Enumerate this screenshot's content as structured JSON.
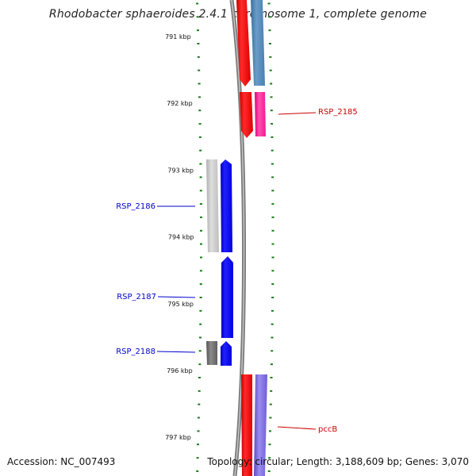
{
  "header": {
    "title": "Rhodobacter sphaeroides 2.4.1 chromosome 1, complete genome"
  },
  "footer": {
    "accession": "Accession: NC_007493",
    "topology": "Topology: circular; Length: 3,188,609 bp; Genes: 3,070"
  },
  "colors": {
    "backbone": "#808080",
    "tick": "#1a7a1a",
    "forward_label": "#cc0000",
    "reverse_label": "#0000cc",
    "red_cds": "#ff0000",
    "blue_cds": "#0000ff",
    "steel_blue": "#4f86b8",
    "pink": "#ff2d9b",
    "light_gray": "#c8c8c8",
    "dark_gray": "#666666",
    "slate_purple": "#7a68d8"
  },
  "axis": {
    "ticks": [
      {
        "label": "791 kbp"
      },
      {
        "label": "792 kbp"
      },
      {
        "label": "793 kbp"
      },
      {
        "label": "794 kbp"
      },
      {
        "label": "795 kbp"
      },
      {
        "label": "796 kbp"
      },
      {
        "label": "797 kbp"
      }
    ]
  },
  "gene_labels": [
    {
      "text": "RSP_2185",
      "strand": "forward"
    },
    {
      "text": "RSP_2186",
      "strand": "reverse"
    },
    {
      "text": "RSP_2187",
      "strand": "reverse"
    },
    {
      "text": "RSP_2188",
      "strand": "reverse"
    },
    {
      "text": "pccB",
      "strand": "forward"
    }
  ]
}
